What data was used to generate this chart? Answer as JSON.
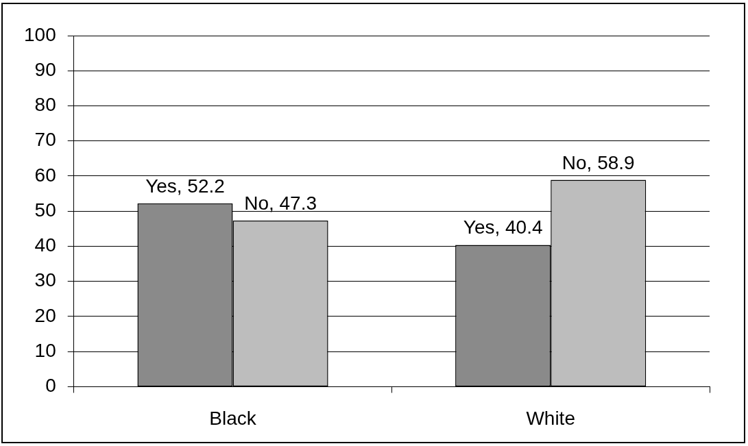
{
  "chart_data": {
    "type": "bar",
    "categories": [
      "Black",
      "White"
    ],
    "series": [
      {
        "color": "#8a8a8a",
        "values": [
          52.2,
          40.4
        ],
        "value_labels": [
          "Yes, 52.2",
          "Yes, 40.4"
        ]
      },
      {
        "color": "#bdbdbd",
        "values": [
          47.3,
          58.9
        ],
        "value_labels": [
          "No, 47.3",
          "No, 58.9"
        ]
      }
    ],
    "ylim": [
      0,
      100
    ],
    "yticks": [
      0,
      10,
      20,
      30,
      40,
      50,
      60,
      70,
      80,
      90,
      100
    ],
    "grid": "y"
  }
}
